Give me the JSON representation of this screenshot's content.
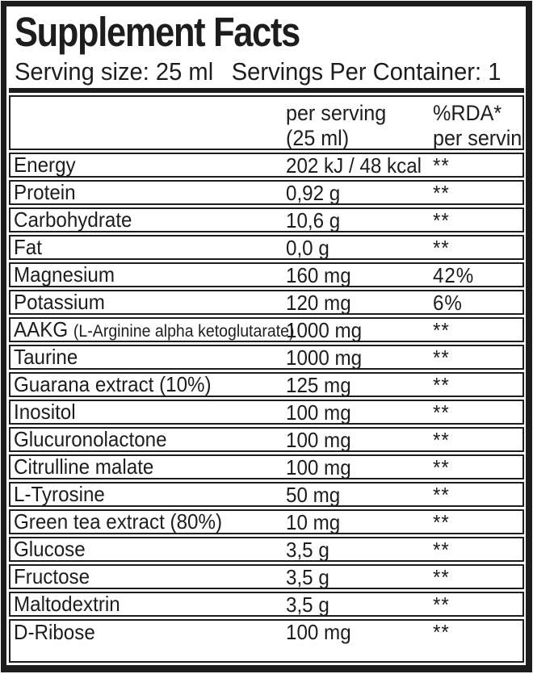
{
  "header": {
    "title": "Supplement Facts",
    "serving_size": "Serving size: 25 ml",
    "servings_per_container": "Servings Per Container: 1"
  },
  "columns": {
    "per_serving_line1": "per serving",
    "per_serving_line2": "(25 ml)",
    "rda_line1": "%RDA*",
    "rda_line2": "per serving"
  },
  "colors": {
    "ink": "#1d1d1b",
    "background": "#ffffff"
  },
  "rows": [
    {
      "name": "Energy",
      "note": "",
      "amount": "202 kJ / 48 kcal",
      "rda": "**"
    },
    {
      "name": "Protein",
      "note": "",
      "amount": "0,92 g",
      "rda": "**"
    },
    {
      "name": "Carbohydrate",
      "note": "",
      "amount": "10,6 g",
      "rda": "**"
    },
    {
      "name": "Fat",
      "note": "",
      "amount": "0,0 g",
      "rda": "**"
    },
    {
      "name": "Magnesium",
      "note": "",
      "amount": "160 mg",
      "rda": "42%"
    },
    {
      "name": "Potassium",
      "note": "",
      "amount": "120 mg",
      "rda": "6%"
    },
    {
      "name": "AAKG",
      "note": "(L-Arginine alpha ketoglutarate)",
      "amount": "1000 mg",
      "rda": "**"
    },
    {
      "name": "Taurine",
      "note": "",
      "amount": "1000 mg",
      "rda": "**"
    },
    {
      "name": "Guarana extract (10%)",
      "note": "",
      "amount": "125 mg",
      "rda": "**"
    },
    {
      "name": "Inositol",
      "note": "",
      "amount": "100 mg",
      "rda": "**"
    },
    {
      "name": "Glucuronolactone",
      "note": "",
      "amount": "100 mg",
      "rda": "**"
    },
    {
      "name": "Citrulline malate",
      "note": "",
      "amount": "100 mg",
      "rda": "**"
    },
    {
      "name": "L-Tyrosine",
      "note": "",
      "amount": "50 mg",
      "rda": "**"
    },
    {
      "name": "Green tea extract (80%)",
      "note": "",
      "amount": "10 mg",
      "rda": "**"
    },
    {
      "name": "Glucose",
      "note": "",
      "amount": "3,5 g",
      "rda": "**"
    },
    {
      "name": "Fructose",
      "note": "",
      "amount": "3,5 g",
      "rda": "**"
    },
    {
      "name": "Maltodextrin",
      "note": "",
      "amount": "3,5 g",
      "rda": "**"
    },
    {
      "name": "D-Ribose",
      "note": "",
      "amount": "100 mg",
      "rda": "**"
    }
  ]
}
